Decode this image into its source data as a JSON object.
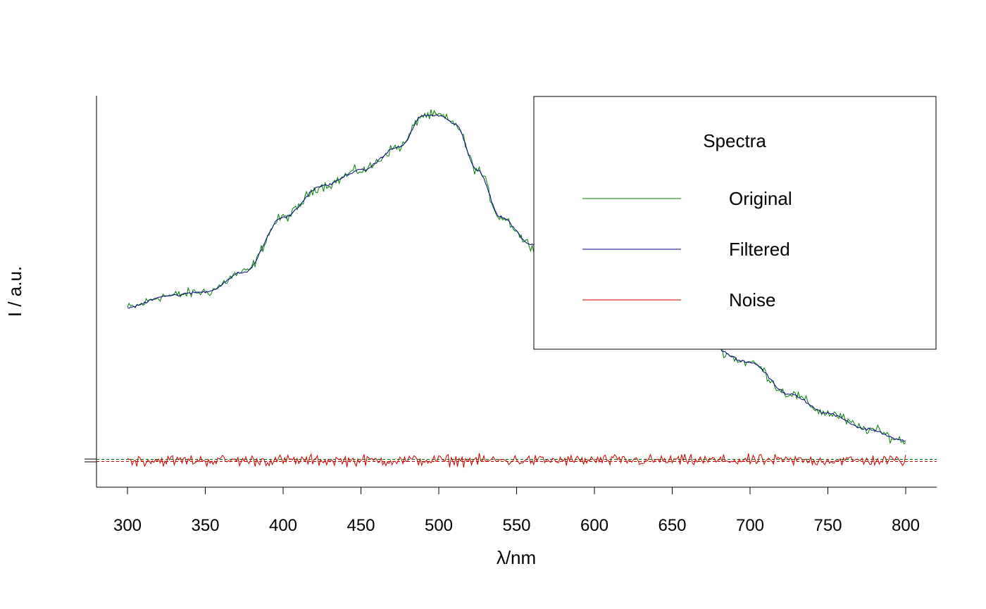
{
  "chart_data": {
    "type": "line",
    "title": "",
    "xlabel": "λ/nm",
    "ylabel": "I / a.u.",
    "xlim": [
      280,
      820
    ],
    "ylim": [
      -0.07,
      0.95
    ],
    "x_ticks": [
      300,
      350,
      400,
      450,
      500,
      550,
      600,
      650,
      700,
      750,
      800
    ],
    "x_tick_labels": [
      "300",
      "350",
      "400",
      "450",
      "500",
      "550",
      "600",
      "650",
      "700",
      "750",
      "800"
    ],
    "y_tick_labels_shown": false,
    "grid": false,
    "reference_lines": [
      {
        "y": 0,
        "style": "dashed",
        "colors": [
          "#007700",
          "#cc0000"
        ]
      }
    ],
    "x": [
      300,
      325,
      350,
      375,
      400,
      425,
      450,
      475,
      490,
      500,
      510,
      525,
      540,
      560,
      600,
      650,
      700,
      725,
      750,
      775,
      800
    ],
    "series": [
      {
        "name": "Original",
        "color": "#007f00",
        "noisy": true,
        "values": [
          0.39,
          0.42,
          0.43,
          0.48,
          0.62,
          0.7,
          0.74,
          0.8,
          0.88,
          0.88,
          0.86,
          0.74,
          0.62,
          0.55,
          0.48,
          0.36,
          0.25,
          0.17,
          0.12,
          0.08,
          0.05
        ]
      },
      {
        "name": "Filtered",
        "color": "#00007f",
        "noisy": false,
        "values": [
          0.39,
          0.42,
          0.43,
          0.48,
          0.62,
          0.7,
          0.74,
          0.8,
          0.88,
          0.88,
          0.86,
          0.74,
          0.62,
          0.55,
          0.48,
          0.36,
          0.25,
          0.17,
          0.12,
          0.08,
          0.05
        ]
      },
      {
        "name": "Noise",
        "color": "#cc0000",
        "noisy": true,
        "values": [
          0,
          0,
          0,
          0,
          0,
          0,
          0,
          0,
          0,
          0,
          0,
          0,
          0,
          0,
          0,
          0,
          0,
          0,
          0,
          0,
          0
        ]
      }
    ],
    "legend": {
      "title": "Spectra",
      "position": "top-right",
      "entries": [
        "Original",
        "Filtered",
        "Noise"
      ]
    }
  }
}
